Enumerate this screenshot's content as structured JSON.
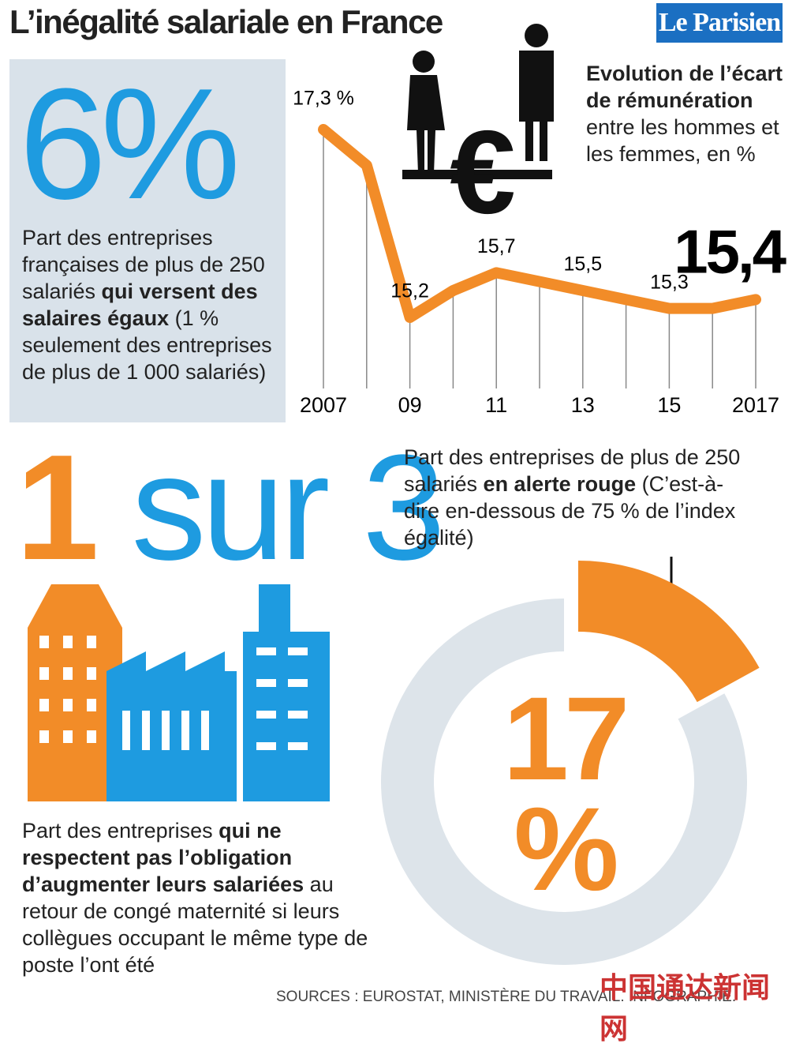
{
  "header": {
    "title": "L’inégalité salariale en France",
    "logo": "Le Parisien"
  },
  "stat1": {
    "value": "6%",
    "text": [
      {
        "text": "Part des entreprises françaises de plus de 250 salariés "
      },
      {
        "text": "qui versent des salaires égaux",
        "bold": true
      },
      {
        "text": " (1 % seulement des entreprises de plus de 1 000 salariés)"
      }
    ]
  },
  "legend_text": [
    {
      "text": "Evolution de l’écart de rémunération",
      "bold": true
    },
    {
      "text": " entre les hommes et les femmes, en %"
    }
  ],
  "stat2": {
    "number": "1",
    "rest": "sur 3",
    "text": [
      {
        "text": "Part des entreprises "
      },
      {
        "text": "qui ne respectent pas l’obligation d’augmenter leurs salariées",
        "bold": true
      },
      {
        "text": " au retour de congé maternité si leurs collègues occupant le même type de poste l’ont été"
      }
    ]
  },
  "donut_text": [
    {
      "text": "Part des entreprises de plus de 250 salariés "
    },
    {
      "text": "en alerte rouge",
      "bold": true
    },
    {
      "text": " (C’est-à-dire en-dessous de 75 % de l’index égalité)"
    }
  ],
  "sources": "SOURCES : EUROSTAT, MINISTÈRE DU TRAVAIL. INFOGRAPHIE.",
  "watermark": "中国通达新闻网",
  "chart_data": [
    {
      "type": "line",
      "color": "#f28c28",
      "x": [
        2007,
        2008,
        2009,
        2010,
        2011,
        2012,
        2013,
        2014,
        2015,
        2016,
        2017
      ],
      "values": [
        17.3,
        16.9,
        15.2,
        15.5,
        15.7,
        15.6,
        15.5,
        15.4,
        15.3,
        15.3,
        15.4
      ],
      "value_labels": [
        "17,3 %",
        null,
        "15,2",
        null,
        "15,7",
        null,
        "15,5",
        null,
        "15,3",
        null,
        "15,4"
      ],
      "xlim": [
        2007,
        2017
      ],
      "ylim": [
        14.6,
        17.6
      ],
      "xticks": [
        {
          "value": 2007,
          "label": "2007"
        },
        {
          "value": 2009,
          "label": "09"
        },
        {
          "value": 2011,
          "label": "11"
        },
        {
          "value": 2013,
          "label": "13"
        },
        {
          "value": 2015,
          "label": "15"
        },
        {
          "value": 2017,
          "label": "2017"
        }
      ]
    },
    {
      "type": "pie",
      "values": [
        17,
        83
      ],
      "colors": [
        "#f28c28",
        "#dde4ea"
      ],
      "value_labels": [
        "17 %",
        null
      ]
    }
  ]
}
